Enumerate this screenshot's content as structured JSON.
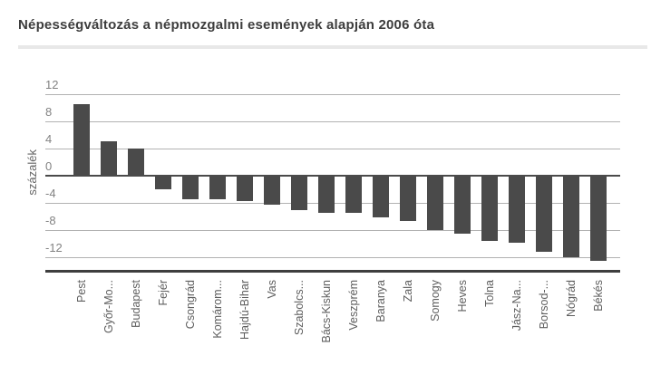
{
  "title": "Népességváltozás a népmozgalmi események alapján 2006 óta",
  "colors": {
    "bar": "#4a4a4a",
    "zero_line": "#4a4a4a",
    "gridline": "#b2b2b2",
    "bottom_axis": "#3e3e3e",
    "title_text": "#3d3d3d",
    "ytick_text": "#828282",
    "xlabel_text": "#5e5e5e",
    "ylabel_text": "#666666",
    "separator": "#e8e8e8",
    "background": "#ffffff"
  },
  "chart_data": {
    "type": "bar",
    "title": "Népességváltozás a népmozgalmi események alapján 2006 óta",
    "xlabel": "",
    "ylabel": "százalék",
    "ylim": [
      -14.5,
      12
    ],
    "yticks": [
      12,
      8,
      4,
      0,
      -4,
      -8,
      -12
    ],
    "grid": true,
    "legend": "none",
    "categories": [
      "Pest",
      "Győr-Mo...",
      "Budapest",
      "Fejér",
      "Csongrád",
      "Komárom...",
      "Hajdú-Bihar",
      "Vas",
      "Szabolcs...",
      "Bács-Kiskun",
      "Veszprém",
      "Baranya",
      "Zala",
      "Somogy",
      "Heves",
      "Tolna",
      "Jász-Na...",
      "Borsod-...",
      "Nógrád",
      "Békés"
    ],
    "values": [
      10.5,
      5.1,
      4.0,
      -2.0,
      -3.4,
      -3.5,
      -3.7,
      -4.2,
      -5.0,
      -5.4,
      -5.5,
      -6.1,
      -6.6,
      -8.0,
      -8.5,
      -9.6,
      -9.8,
      -11.2,
      -12.0,
      -12.5
    ]
  }
}
